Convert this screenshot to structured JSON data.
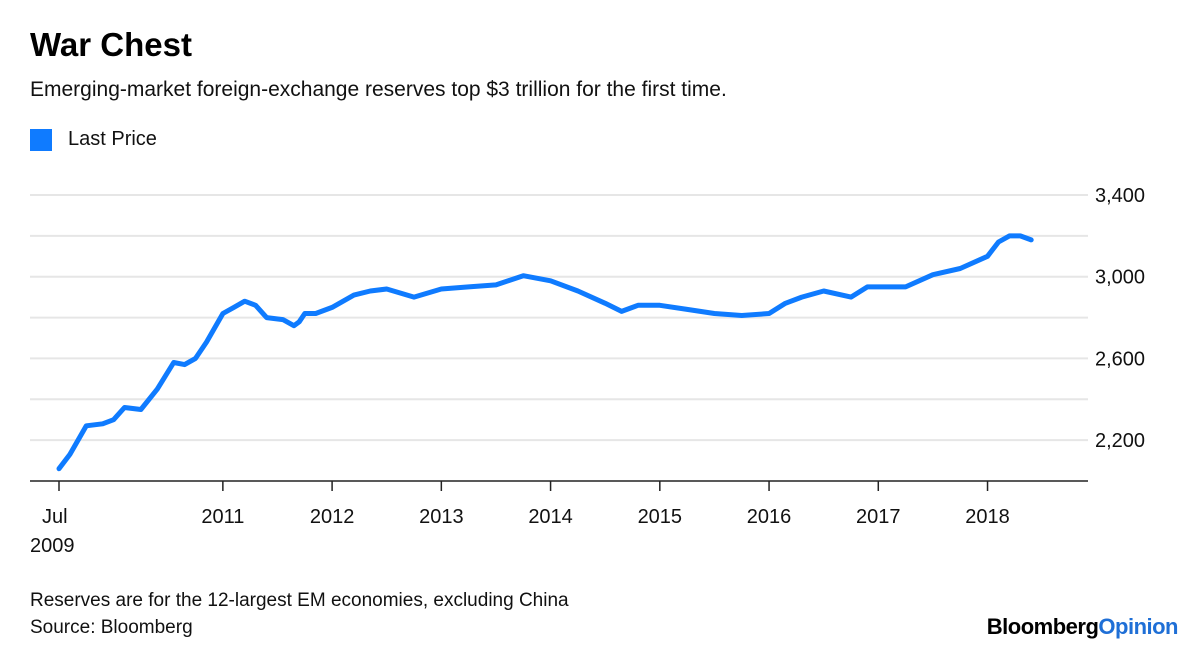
{
  "title": "War Chest",
  "subtitle": "Emerging-market foreign-exchange reserves top $3 trillion for the first time.",
  "legend": {
    "label": "Last Price",
    "color": "#0f7bff"
  },
  "footnote": "Reserves are for the 12-largest EM economies, excluding China",
  "source": "Source: Bloomberg",
  "brand": {
    "name": "Bloomberg",
    "accent": "Opinion",
    "accent_color": "#1f6fd6"
  },
  "chart_data": {
    "type": "line",
    "title": "War Chest",
    "xlabel": "",
    "ylabel": "",
    "ylim": [
      2000,
      3400
    ],
    "y_ticks": [
      2200,
      2600,
      3000,
      3400
    ],
    "y_tick_labels": [
      "2,200",
      "2,600",
      "3,000",
      "3,400"
    ],
    "x_range": [
      2009.5,
      2018.7
    ],
    "x_ticks": [
      {
        "value": 2009.5,
        "label": "Jul",
        "sublabel": "2009"
      },
      {
        "value": 2011,
        "label": "2011"
      },
      {
        "value": 2012,
        "label": "2012"
      },
      {
        "value": 2013,
        "label": "2013"
      },
      {
        "value": 2014,
        "label": "2014"
      },
      {
        "value": 2015,
        "label": "2015"
      },
      {
        "value": 2016,
        "label": "2016"
      },
      {
        "value": 2017,
        "label": "2017"
      },
      {
        "value": 2018,
        "label": "2018"
      }
    ],
    "grid": true,
    "series": [
      {
        "name": "Last Price",
        "color": "#0f7bff",
        "x": [
          2009.5,
          2009.6,
          2009.75,
          2009.9,
          2010.0,
          2010.1,
          2010.25,
          2010.4,
          2010.55,
          2010.65,
          2010.75,
          2010.85,
          2011.0,
          2011.1,
          2011.2,
          2011.3,
          2011.4,
          2011.55,
          2011.65,
          2011.7,
          2011.75,
          2011.85,
          2012.0,
          2012.2,
          2012.35,
          2012.5,
          2012.75,
          2013.0,
          2013.25,
          2013.5,
          2013.75,
          2014.0,
          2014.25,
          2014.5,
          2014.65,
          2014.8,
          2015.0,
          2015.25,
          2015.5,
          2015.75,
          2016.0,
          2016.15,
          2016.3,
          2016.5,
          2016.75,
          2016.9,
          2017.0,
          2017.25,
          2017.5,
          2017.75,
          2018.0,
          2018.1,
          2018.2,
          2018.3,
          2018.4
        ],
        "values": [
          2060,
          2130,
          2270,
          2280,
          2300,
          2360,
          2350,
          2450,
          2580,
          2570,
          2600,
          2680,
          2820,
          2850,
          2880,
          2860,
          2800,
          2790,
          2760,
          2780,
          2820,
          2820,
          2850,
          2910,
          2930,
          2940,
          2900,
          2940,
          2950,
          2960,
          3005,
          2980,
          2930,
          2870,
          2830,
          2860,
          2860,
          2840,
          2820,
          2810,
          2820,
          2870,
          2900,
          2930,
          2900,
          2950,
          2950,
          2950,
          3010,
          3040,
          3100,
          3170,
          3200,
          3200,
          3180
        ]
      }
    ]
  }
}
